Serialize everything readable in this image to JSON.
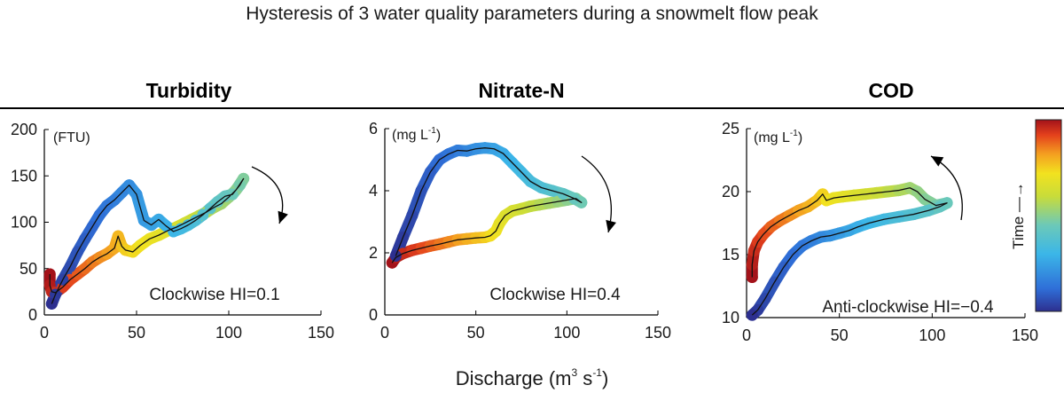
{
  "title": "Hysteresis of 3 water quality parameters during a snowmelt flow peak",
  "xlabel_main": "Discharge  (m",
  "xlabel_sup1": "3",
  "xlabel_mid": " s",
  "xlabel_sup2": "-1",
  "xlabel_end": ")",
  "colorbar_label": "Time —→",
  "chart_data": [
    {
      "type": "line",
      "title": "Turbidity",
      "unit": "(FTU)",
      "unit_sup": "",
      "annotation": "Clockwise HI=0.1",
      "direction": "clockwise",
      "xlim": [
        0,
        150
      ],
      "ylim": [
        0,
        200
      ],
      "xticks": [
        "0",
        "50",
        "100",
        "150"
      ],
      "yticks": [
        "0",
        "50",
        "100",
        "150",
        "200"
      ],
      "series": [
        {
          "x": [
            3,
            3,
            4,
            6,
            10,
            14,
            18,
            22,
            26,
            30,
            34,
            38,
            40,
            42,
            44,
            48,
            52,
            57,
            62,
            67,
            72,
            76,
            80,
            84,
            88,
            92,
            96,
            100,
            104,
            108,
            106,
            102,
            98,
            94,
            90,
            86,
            82,
            78,
            74,
            70,
            66,
            62,
            58,
            54,
            50,
            46,
            42,
            38,
            34,
            30,
            26,
            22,
            18,
            14,
            10,
            6,
            4
          ],
          "y": [
            44,
            32,
            25,
            24,
            30,
            38,
            44,
            50,
            57,
            62,
            66,
            72,
            85,
            74,
            70,
            68,
            75,
            82,
            86,
            91,
            95,
            99,
            103,
            107,
            111,
            116,
            120,
            127,
            135,
            147,
            140,
            130,
            128,
            122,
            115,
            108,
            102,
            97,
            93,
            90,
            96,
            103,
            97,
            102,
            130,
            140,
            132,
            124,
            118,
            108,
            95,
            82,
            68,
            52,
            38,
            22,
            12
          ]
        }
      ]
    },
    {
      "type": "line",
      "title": "Nitrate-N",
      "unit": "(mg L",
      "unit_sup": "-1",
      "unit_end": ")",
      "annotation": "Clockwise HI=0.4",
      "direction": "clockwise",
      "xlim": [
        0,
        150
      ],
      "ylim": [
        0,
        6
      ],
      "xticks": [
        "0",
        "50",
        "100",
        "150"
      ],
      "yticks": [
        "0",
        "2",
        "4",
        "6"
      ],
      "series": [
        {
          "x": [
            4,
            6,
            10,
            15,
            20,
            25,
            30,
            35,
            40,
            45,
            50,
            55,
            58,
            61,
            63,
            66,
            70,
            75,
            80,
            85,
            90,
            95,
            100,
            105,
            108,
            104,
            98,
            92,
            86,
            80,
            75,
            70,
            65,
            60,
            55,
            50,
            45,
            40,
            35,
            30,
            25,
            20,
            15,
            10,
            6
          ],
          "y": [
            1.68,
            1.85,
            1.98,
            2.08,
            2.15,
            2.22,
            2.28,
            2.35,
            2.42,
            2.45,
            2.48,
            2.5,
            2.55,
            2.7,
            2.95,
            3.2,
            3.35,
            3.42,
            3.5,
            3.55,
            3.6,
            3.65,
            3.7,
            3.75,
            3.62,
            3.75,
            3.9,
            4.0,
            4.1,
            4.3,
            4.6,
            4.9,
            5.2,
            5.35,
            5.38,
            5.35,
            5.28,
            5.3,
            5.18,
            5.0,
            4.6,
            4.0,
            3.2,
            2.5,
            1.9
          ]
        }
      ]
    },
    {
      "type": "line",
      "title": "COD",
      "unit": "(mg L",
      "unit_sup": "-1",
      "unit_end": ")",
      "annotation": "Anti-clockwise HI=−0.4",
      "direction": "anti-clockwise",
      "xlim": [
        0,
        150
      ],
      "ylim": [
        10,
        25
      ],
      "xticks": [
        "0",
        "50",
        "100",
        "150"
      ],
      "yticks": [
        "10",
        "15",
        "20",
        "25"
      ],
      "series": [
        {
          "x": [
            3,
            3,
            4,
            6,
            9,
            13,
            18,
            23,
            28,
            33,
            38,
            41,
            43,
            47,
            52,
            58,
            64,
            70,
            76,
            82,
            88,
            92,
            96,
            102,
            108,
            104,
            98,
            90,
            82,
            74,
            66,
            60,
            55,
            50,
            45,
            40,
            35,
            30,
            25,
            20,
            15,
            10,
            6,
            3
          ],
          "y": [
            13.2,
            14.2,
            15.3,
            16.0,
            16.6,
            17.2,
            17.7,
            18.1,
            18.5,
            18.8,
            19.3,
            19.8,
            19.3,
            19.5,
            19.6,
            19.7,
            19.8,
            19.9,
            20.0,
            20.1,
            20.3,
            20.0,
            19.4,
            18.9,
            19.1,
            18.8,
            18.5,
            18.2,
            18.0,
            17.8,
            17.5,
            17.2,
            16.9,
            16.7,
            16.5,
            16.4,
            16.1,
            15.7,
            15.0,
            14.0,
            12.8,
            11.5,
            10.6,
            10.2
          ]
        }
      ]
    }
  ]
}
